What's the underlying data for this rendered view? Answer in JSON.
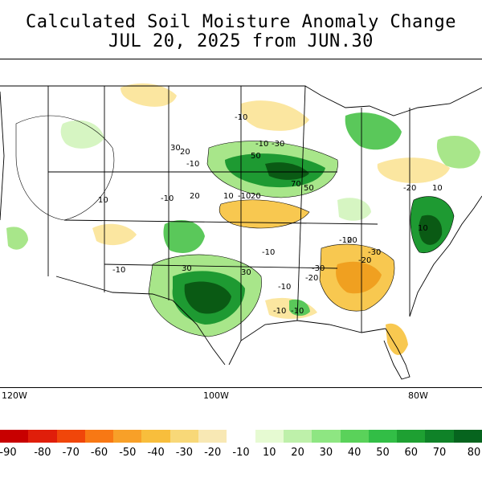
{
  "title": {
    "line1": "Calculated Soil Moisture Anomaly Change",
    "line2": "JUL 20, 2025 from JUN.30"
  },
  "map": {
    "longitude_labels": [
      "120W",
      "100W",
      "80W"
    ],
    "contour_labels": [
      "-10",
      "-10",
      "-30",
      "30",
      "20",
      "-10",
      "10",
      "50",
      "70",
      "50",
      "-10",
      "20",
      "10",
      "-10",
      "20",
      "-20",
      "10",
      "-10",
      "20",
      "30",
      "-30",
      "-20",
      "-10",
      "-30",
      "-20",
      "30",
      "-10",
      "-10",
      "-10",
      "-10",
      "10"
    ],
    "anomaly_colors": {
      "dry_strong": "#f0a020",
      "dry_moderate": "#f8c850",
      "dry_weak": "#fbe6a0",
      "wet_weak": "#d6f5c2",
      "wet_light": "#a8e68a",
      "wet_moderate": "#5ac85a",
      "wet_strong": "#1e9a32",
      "wet_extreme": "#0a5a14"
    }
  },
  "colorbar": {
    "labels": [
      "-90",
      "-80",
      "-70",
      "-60",
      "-50",
      "-40",
      "-30",
      "-20",
      "-10",
      "10",
      "20",
      "30",
      "40",
      "50",
      "60",
      "70",
      "80"
    ],
    "colors": [
      "#c80000",
      "#e01e0a",
      "#f0460a",
      "#f87814",
      "#f8a028",
      "#f8be3c",
      "#f8d878",
      "#f8e8b4",
      "#ffffff",
      "#e6fad2",
      "#bef0aa",
      "#8ee682",
      "#5ad25a",
      "#32be46",
      "#1ea032",
      "#0f8228",
      "#06641e"
    ]
  }
}
